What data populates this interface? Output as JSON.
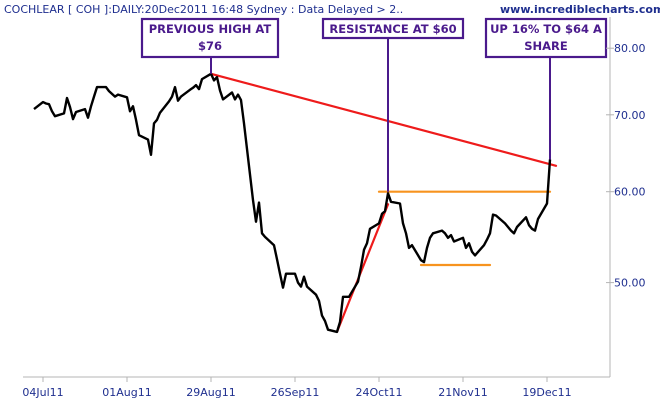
{
  "header": {
    "title": "COCHLEAR [ COH ]:DAILY:20Dec2011 16:48 Sydney : Data Delayed > 2..",
    "site": "www.incrediblecharts.com"
  },
  "colors": {
    "price": "#000000",
    "trendline": "#ee1b1b",
    "support_resistance": "#f7931e",
    "annotation": "#4a1a8c",
    "axis_text": "#1f2f8f"
  },
  "chart_data": {
    "type": "line",
    "title": "COCHLEAR [ COH ]:DAILY:20Dec2011 16:48 Sydney : Data Delayed > 2..",
    "xlabel": "",
    "ylabel": "",
    "x_ticks": [
      "04Jul11",
      "01Aug11",
      "29Aug11",
      "26Sep11",
      "24Oct11",
      "21Nov11",
      "19Dec11"
    ],
    "y_ticks": [
      50.0,
      60.0,
      70.0,
      80.0
    ],
    "y_tick_labels": [
      "50.00",
      "60.00",
      "70.00",
      "80.00"
    ],
    "ylim": [
      40,
      84
    ],
    "y_scale": "log",
    "grid": false,
    "series": [
      {
        "values": [
          [
            "2011-07-01",
            70.8
          ],
          [
            "2011-07-04",
            71.8
          ],
          [
            "2011-07-05",
            71.6
          ],
          [
            "2011-07-06",
            71.5
          ],
          [
            "2011-07-07",
            70.5
          ],
          [
            "2011-07-08",
            69.8
          ],
          [
            "2011-07-11",
            70.2
          ],
          [
            "2011-07-12",
            72.4
          ],
          [
            "2011-07-13",
            71.1
          ],
          [
            "2011-07-14",
            69.4
          ],
          [
            "2011-07-15",
            70.4
          ],
          [
            "2011-07-18",
            70.8
          ],
          [
            "2011-07-19",
            69.6
          ],
          [
            "2011-07-20",
            71.2
          ],
          [
            "2011-07-21",
            72.6
          ],
          [
            "2011-07-22",
            74.0
          ],
          [
            "2011-07-25",
            74.0
          ],
          [
            "2011-07-26",
            73.4
          ],
          [
            "2011-07-27",
            73.0
          ],
          [
            "2011-07-28",
            72.6
          ],
          [
            "2011-07-29",
            72.9
          ],
          [
            "2011-08-01",
            72.5
          ],
          [
            "2011-08-02",
            70.5
          ],
          [
            "2011-08-03",
            71.2
          ],
          [
            "2011-08-04",
            69.3
          ],
          [
            "2011-08-05",
            67.2
          ],
          [
            "2011-08-08",
            66.6
          ],
          [
            "2011-08-09",
            64.6
          ],
          [
            "2011-08-10",
            68.8
          ],
          [
            "2011-08-11",
            69.3
          ],
          [
            "2011-08-12",
            70.3
          ],
          [
            "2011-08-15",
            71.9
          ],
          [
            "2011-08-16",
            72.6
          ],
          [
            "2011-08-17",
            74.0
          ],
          [
            "2011-08-18",
            72.0
          ],
          [
            "2011-08-19",
            72.6
          ],
          [
            "2011-08-22",
            73.6
          ],
          [
            "2011-08-23",
            73.9
          ],
          [
            "2011-08-24",
            74.3
          ],
          [
            "2011-08-25",
            73.7
          ],
          [
            "2011-08-26",
            75.2
          ],
          [
            "2011-08-29",
            76.0
          ],
          [
            "2011-08-30",
            75.0
          ],
          [
            "2011-08-31",
            75.5
          ],
          [
            "2011-09-01",
            73.5
          ],
          [
            "2011-09-02",
            72.2
          ],
          [
            "2011-09-05",
            73.2
          ],
          [
            "2011-09-06",
            72.2
          ],
          [
            "2011-09-07",
            72.9
          ],
          [
            "2011-09-08",
            72.1
          ],
          [
            "2011-09-09",
            68.8
          ],
          [
            "2011-09-12",
            59.0
          ],
          [
            "2011-09-13",
            56.5
          ],
          [
            "2011-09-14",
            58.7
          ],
          [
            "2011-09-15",
            55.2
          ],
          [
            "2011-09-16",
            54.8
          ],
          [
            "2011-09-19",
            53.9
          ],
          [
            "2011-09-20",
            52.4
          ],
          [
            "2011-09-21",
            50.9
          ],
          [
            "2011-09-22",
            49.5
          ],
          [
            "2011-09-23",
            50.9
          ],
          [
            "2011-09-26",
            50.9
          ],
          [
            "2011-09-27",
            50.0
          ],
          [
            "2011-09-28",
            49.6
          ],
          [
            "2011-09-29",
            50.6
          ],
          [
            "2011-09-30",
            49.6
          ],
          [
            "2011-10-03",
            48.8
          ],
          [
            "2011-10-04",
            48.2
          ],
          [
            "2011-10-05",
            46.8
          ],
          [
            "2011-10-06",
            46.3
          ],
          [
            "2011-10-07",
            45.5
          ],
          [
            "2011-10-10",
            45.3
          ],
          [
            "2011-10-11",
            46.2
          ],
          [
            "2011-10-12",
            48.6
          ],
          [
            "2011-10-13",
            48.6
          ],
          [
            "2011-10-14",
            48.6
          ],
          [
            "2011-10-17",
            50.1
          ],
          [
            "2011-10-18",
            51.6
          ],
          [
            "2011-10-19",
            53.4
          ],
          [
            "2011-10-20",
            54.1
          ],
          [
            "2011-10-21",
            55.7
          ],
          [
            "2011-10-24",
            56.3
          ],
          [
            "2011-10-25",
            57.4
          ],
          [
            "2011-10-26",
            57.7
          ],
          [
            "2011-10-27",
            59.8
          ],
          [
            "2011-10-28",
            58.8
          ],
          [
            "2011-10-31",
            58.6
          ],
          [
            "2011-11-01",
            56.3
          ],
          [
            "2011-11-02",
            55.2
          ],
          [
            "2011-11-03",
            53.6
          ],
          [
            "2011-11-04",
            53.9
          ],
          [
            "2011-11-07",
            52.3
          ],
          [
            "2011-11-08",
            52.1
          ],
          [
            "2011-11-09",
            53.6
          ],
          [
            "2011-11-10",
            54.7
          ],
          [
            "2011-11-11",
            55.2
          ],
          [
            "2011-11-14",
            55.5
          ],
          [
            "2011-11-15",
            55.2
          ],
          [
            "2011-11-16",
            54.7
          ],
          [
            "2011-11-17",
            55.0
          ],
          [
            "2011-11-18",
            54.3
          ],
          [
            "2011-11-21",
            54.7
          ],
          [
            "2011-11-22",
            53.6
          ],
          [
            "2011-11-23",
            54.1
          ],
          [
            "2011-11-24",
            53.2
          ],
          [
            "2011-11-25",
            52.8
          ],
          [
            "2011-11-28",
            53.9
          ],
          [
            "2011-11-29",
            54.5
          ],
          [
            "2011-11-30",
            55.2
          ],
          [
            "2011-12-01",
            57.3
          ],
          [
            "2011-12-02",
            57.2
          ],
          [
            "2011-12-05",
            56.3
          ],
          [
            "2011-12-06",
            55.9
          ],
          [
            "2011-12-07",
            55.5
          ],
          [
            "2011-12-08",
            55.2
          ],
          [
            "2011-12-09",
            55.9
          ],
          [
            "2011-12-12",
            57.0
          ],
          [
            "2011-12-13",
            56.1
          ],
          [
            "2011-12-14",
            55.7
          ],
          [
            "2011-12-15",
            55.5
          ],
          [
            "2011-12-16",
            56.8
          ],
          [
            "2011-12-19",
            58.6
          ],
          [
            "2011-12-20",
            64.0
          ]
        ]
      }
    ],
    "overlays": [
      {
        "kind": "trendline",
        "color": "#ee1b1b",
        "points": [
          [
            "2011-08-29",
            76.0
          ],
          [
            "2011-12-22",
            63.2
          ]
        ]
      },
      {
        "kind": "trendline",
        "color": "#ee1b1b",
        "points": [
          [
            "2011-10-10",
            45.3
          ],
          [
            "2011-10-27",
            58.5
          ]
        ]
      },
      {
        "kind": "resistance",
        "color": "#f7931e",
        "points": [
          [
            "2011-10-24",
            60.0
          ],
          [
            "2011-12-20",
            60.0
          ]
        ]
      },
      {
        "kind": "support",
        "color": "#f7931e",
        "points": [
          [
            "2011-11-07",
            51.8
          ],
          [
            "2011-11-30",
            51.8
          ]
        ]
      }
    ],
    "annotations": [
      {
        "lines": [
          "PREVIOUS HIGH AT",
          "$76"
        ],
        "target": [
          "2011-08-29",
          76.0
        ]
      },
      {
        "lines": [
          "RESISTANCE AT $60"
        ],
        "target": [
          "2011-10-27",
          60.0
        ]
      },
      {
        "lines": [
          "UP 16% TO $64 A",
          "SHARE"
        ],
        "target": [
          "2011-12-20",
          64.0
        ]
      }
    ]
  }
}
